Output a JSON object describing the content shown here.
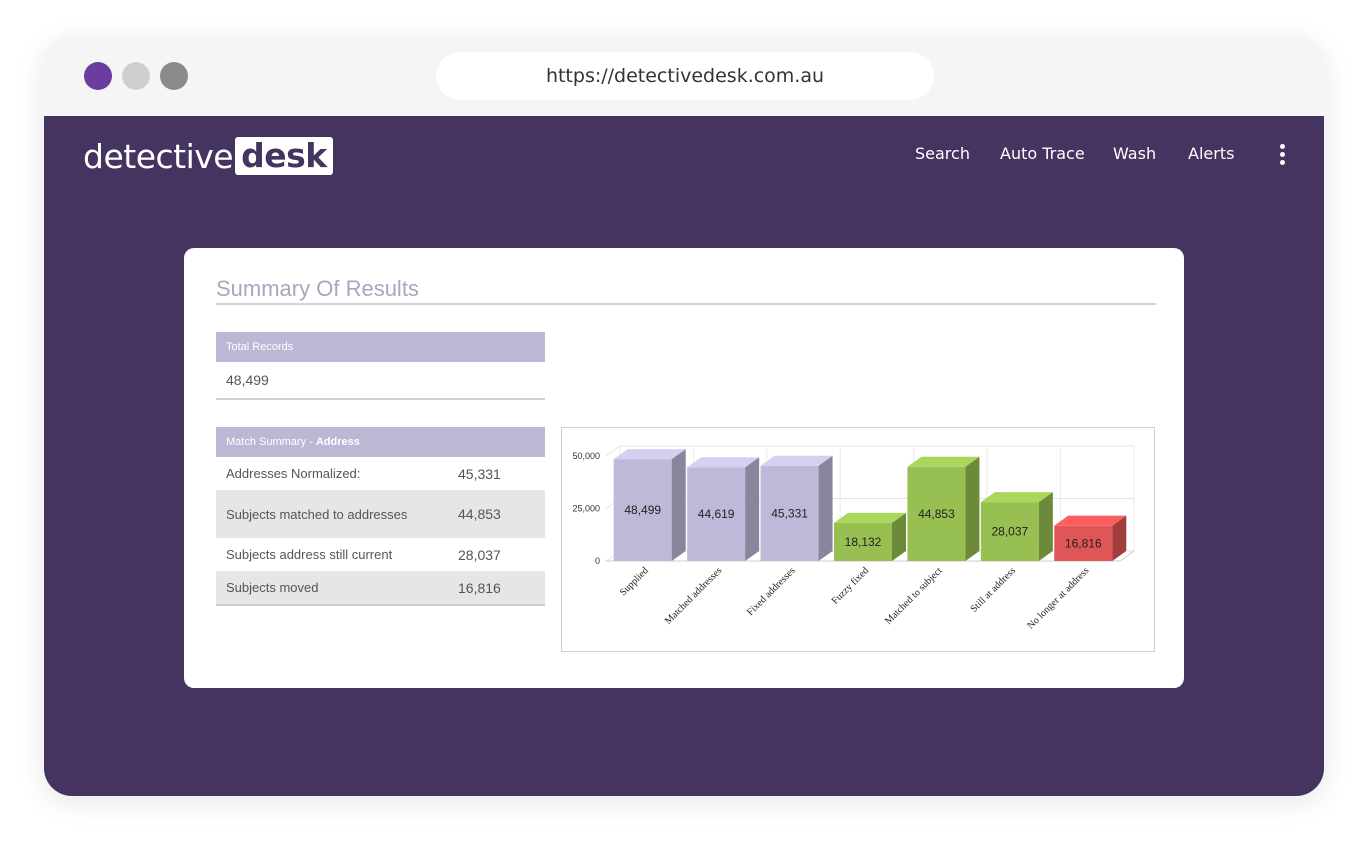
{
  "browser": {
    "url": "https://detectivedesk.com.au"
  },
  "header": {
    "logo_prefix": "detective",
    "logo_box": "desk",
    "nav": [
      "Search",
      "Auto Trace",
      "Wash",
      "Alerts"
    ],
    "menu_icon": "kebab-menu-icon"
  },
  "summary": {
    "title": "Summary Of Results",
    "total_records_label": "Total Records",
    "total_records_value": "48,499",
    "match_summary_label": "Match Summary - ",
    "match_summary_bold": "Address",
    "rows": [
      {
        "label": "Addresses Normalized:",
        "value": "45,331"
      },
      {
        "label": "Subjects matched to addresses",
        "value": "44,853"
      },
      {
        "label": "Subjects address still current",
        "value": "28,037"
      },
      {
        "label": "Subjects moved",
        "value": "16,816"
      }
    ]
  },
  "chart_data": {
    "type": "bar",
    "categories": [
      "Supplied",
      "Matched addresses",
      "Fixed addresses",
      "Fuzzy fixed",
      "Matched to subject",
      "Still at address",
      "No longer at address"
    ],
    "values": [
      48499,
      44619,
      45331,
      18132,
      44853,
      28037,
      16816
    ],
    "value_labels": [
      "48,499",
      "44,619",
      "45,331",
      "18,132",
      "44,853",
      "28,037",
      "16,816"
    ],
    "yticks": [
      "0",
      "25,000",
      "50,000"
    ],
    "ylim": [
      0,
      50000
    ],
    "grid": true,
    "colors": [
      "#bcbad8",
      "#bcbad8",
      "#bcbad8",
      "#98bf52",
      "#98bf52",
      "#98bf52",
      "#e05555"
    ]
  }
}
